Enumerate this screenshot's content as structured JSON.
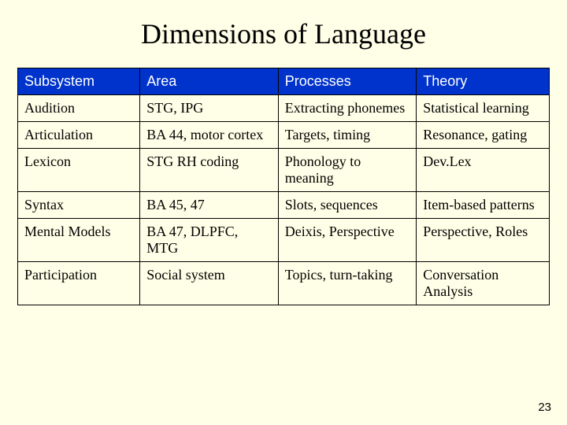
{
  "slide": {
    "title": "Dimensions of Language",
    "number": "23",
    "background_color": "#ffffe8",
    "table": {
      "type": "table",
      "header_bg": "#0033cc",
      "header_fg": "#ffffff",
      "border_color": "#000000",
      "header_fontsize": 18,
      "body_fontsize": 18,
      "columns": [
        "Subsystem",
        "Area",
        "Processes",
        "Theory"
      ],
      "col_widths_pct": [
        23,
        26,
        26,
        25
      ],
      "rows": [
        {
          "subsystem": "Audition",
          "area": "STG, IPG",
          "processes": "Extracting phonemes",
          "theory": "Statistical learning"
        },
        {
          "subsystem": "Articulation",
          "area": "BA 44, motor cortex",
          "processes": "Targets, timing",
          "theory": "Resonance, gating"
        },
        {
          "subsystem": "Lexicon",
          "area": "STG\nRH coding",
          "processes": "Phonology to meaning",
          "theory": "Dev.Lex"
        },
        {
          "subsystem": "Syntax",
          "area": "BA 45, 47",
          "processes": "Slots, sequences",
          "theory": "Item-based patterns"
        },
        {
          "subsystem": "Mental Models",
          "area": "BA 47, DLPFC, MTG",
          "processes": "Deixis, Perspective",
          "theory": "Perspective, Roles"
        },
        {
          "subsystem": "Participation",
          "area": "Social system",
          "processes": "Topics, turn-taking",
          "theory": "Conversation Analysis"
        }
      ]
    }
  }
}
